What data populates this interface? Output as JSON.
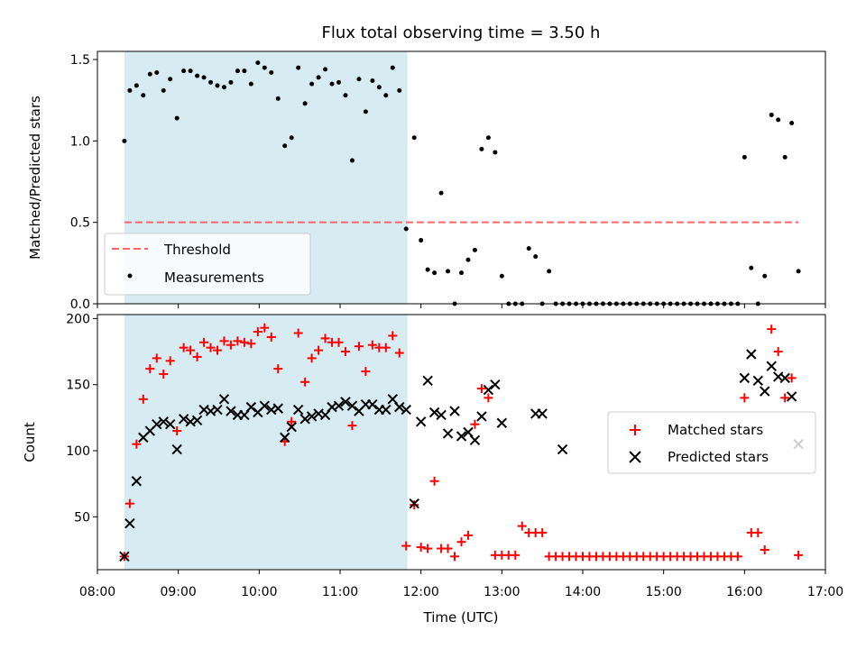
{
  "title": "Flux total observing time = 3.50 h",
  "xlabel": "Time (UTC)",
  "colors": {
    "shade": "#add8e6",
    "threshold": "#ff6666",
    "matched": "#ff0000",
    "predicted": "#000000",
    "measurement": "#000000"
  },
  "chart_data": [
    {
      "type": "scatter",
      "ylabel": "Matched/Predicted stars",
      "xlim": [
        "08:00",
        "17:00"
      ],
      "ylim": [
        0,
        1.55
      ],
      "yticks": [
        "0.0",
        "0.5",
        "1.0",
        "1.5"
      ],
      "ytick_values": [
        0,
        0.5,
        1.0,
        1.5
      ],
      "shaded_region": {
        "from": "08:20",
        "to": "11:50"
      },
      "grid": false,
      "legend_position": "lower left",
      "series": [
        {
          "name": "Threshold",
          "kind": "dashed-line",
          "x": [
            "08:20",
            "16:40"
          ],
          "y": [
            0.5,
            0.5
          ]
        },
        {
          "name": "Measurements",
          "kind": "dots",
          "x": [
            "08:20",
            "08:24",
            "08:29",
            "08:34",
            "08:39",
            "08:44",
            "08:49",
            "08:54",
            "08:59",
            "09:04",
            "09:09",
            "09:14",
            "09:19",
            "09:24",
            "09:29",
            "09:34",
            "09:39",
            "09:44",
            "09:49",
            "09:54",
            "09:59",
            "10:04",
            "10:09",
            "10:14",
            "10:19",
            "10:24",
            "10:29",
            "10:34",
            "10:39",
            "10:44",
            "10:49",
            "10:54",
            "10:59",
            "11:04",
            "11:09",
            "11:14",
            "11:19",
            "11:24",
            "11:29",
            "11:34",
            "11:39",
            "11:44",
            "11:49",
            "11:55",
            "12:00",
            "12:05",
            "12:10",
            "12:15",
            "12:20",
            "12:25",
            "12:30",
            "12:35",
            "12:40",
            "12:45",
            "12:50",
            "12:55",
            "13:00",
            "13:05",
            "13:10",
            "13:15",
            "13:20",
            "13:25",
            "13:30",
            "13:35",
            "13:40",
            "13:45",
            "13:50",
            "13:55",
            "14:00",
            "14:05",
            "14:10",
            "14:15",
            "14:20",
            "14:25",
            "14:30",
            "14:35",
            "14:40",
            "14:45",
            "14:50",
            "14:55",
            "15:00",
            "15:05",
            "15:10",
            "15:15",
            "15:20",
            "15:25",
            "15:30",
            "15:35",
            "15:40",
            "15:45",
            "15:50",
            "15:55",
            "16:00",
            "16:05",
            "16:10",
            "16:15",
            "16:20",
            "16:25",
            "16:30",
            "16:35",
            "16:40"
          ],
          "y": [
            1.0,
            1.31,
            1.34,
            1.28,
            1.41,
            1.42,
            1.31,
            1.38,
            1.14,
            1.43,
            1.43,
            1.4,
            1.39,
            1.36,
            1.34,
            1.33,
            1.36,
            1.43,
            1.43,
            1.35,
            1.48,
            1.45,
            1.42,
            1.26,
            0.97,
            1.02,
            1.45,
            1.23,
            1.35,
            1.39,
            1.44,
            1.35,
            1.36,
            1.28,
            0.88,
            1.38,
            1.18,
            1.37,
            1.33,
            1.28,
            1.45,
            1.31,
            0.46,
            1.02,
            0.39,
            0.21,
            0.19,
            0.68,
            0.2,
            0.0,
            0.19,
            0.27,
            0.33,
            0.95,
            1.02,
            0.93,
            0.17,
            0.0,
            0.0,
            0.0,
            0.34,
            0.29,
            0.0,
            0.2,
            0.0,
            0.0,
            0.0,
            0.0,
            0.0,
            0.0,
            0.0,
            0.0,
            0.0,
            0.0,
            0.0,
            0.0,
            0.0,
            0.0,
            0.0,
            0.0,
            0.0,
            0.0,
            0.0,
            0.0,
            0.0,
            0.0,
            0.0,
            0.0,
            0.0,
            0.0,
            0.0,
            0.0,
            0.9,
            0.22,
            0.0,
            0.17,
            1.16,
            1.13,
            0.9,
            1.11,
            0.2
          ]
        }
      ]
    },
    {
      "type": "scatter",
      "ylabel": "Count",
      "xlim": [
        "08:00",
        "17:00"
      ],
      "ylim": [
        10,
        203
      ],
      "yticks": [
        "50",
        "100",
        "150",
        "200"
      ],
      "ytick_values": [
        50,
        100,
        150,
        200
      ],
      "xticks": [
        "08:00",
        "09:00",
        "10:00",
        "11:00",
        "12:00",
        "13:00",
        "14:00",
        "15:00",
        "16:00",
        "17:00"
      ],
      "shaded_region": {
        "from": "08:20",
        "to": "11:50"
      },
      "grid": false,
      "legend_position": "center right",
      "series": [
        {
          "name": "Matched stars",
          "kind": "plus",
          "x": [
            "08:20",
            "08:24",
            "08:29",
            "08:34",
            "08:39",
            "08:44",
            "08:49",
            "08:54",
            "08:59",
            "09:04",
            "09:09",
            "09:14",
            "09:19",
            "09:24",
            "09:29",
            "09:34",
            "09:39",
            "09:44",
            "09:49",
            "09:54",
            "09:59",
            "10:04",
            "10:09",
            "10:14",
            "10:19",
            "10:24",
            "10:29",
            "10:34",
            "10:39",
            "10:44",
            "10:49",
            "10:54",
            "10:59",
            "11:04",
            "11:09",
            "11:14",
            "11:19",
            "11:24",
            "11:29",
            "11:34",
            "11:39",
            "11:44",
            "11:49",
            "11:55",
            "12:00",
            "12:05",
            "12:10",
            "12:15",
            "12:20",
            "12:25",
            "12:30",
            "12:35",
            "12:40",
            "12:45",
            "12:50",
            "12:55",
            "13:00",
            "13:05",
            "13:10",
            "13:15",
            "13:20",
            "13:25",
            "13:30",
            "13:35",
            "13:40",
            "13:45",
            "13:50",
            "13:55",
            "14:00",
            "14:05",
            "14:10",
            "14:15",
            "14:20",
            "14:25",
            "14:30",
            "14:35",
            "14:40",
            "14:45",
            "14:50",
            "14:55",
            "15:00",
            "15:05",
            "15:10",
            "15:15",
            "15:20",
            "15:25",
            "15:30",
            "15:35",
            "15:40",
            "15:45",
            "15:50",
            "15:55",
            "16:00",
            "16:05",
            "16:10",
            "16:15",
            "16:20",
            "16:25",
            "16:30",
            "16:35",
            "16:40"
          ],
          "y": [
            20,
            60,
            105,
            139,
            162,
            170,
            158,
            168,
            115,
            178,
            176,
            171,
            182,
            178,
            176,
            183,
            180,
            183,
            182,
            181,
            190,
            193,
            186,
            162,
            107,
            122,
            189,
            152,
            170,
            176,
            185,
            182,
            182,
            175,
            119,
            179,
            160,
            180,
            178,
            178,
            187,
            174,
            28,
            59,
            27,
            26,
            77,
            26,
            26,
            20,
            31,
            36,
            120,
            147,
            140,
            21,
            21,
            21,
            21,
            43,
            38,
            38,
            38,
            20,
            20,
            20,
            20,
            20,
            20,
            20,
            20,
            20,
            20,
            20,
            20,
            20,
            20,
            20,
            20,
            20,
            20,
            20,
            20,
            20,
            20,
            20,
            20,
            20,
            20,
            20,
            20,
            20,
            140,
            38,
            38,
            25,
            192,
            175,
            140,
            155,
            21
          ]
        },
        {
          "name": "Predicted stars",
          "kind": "cross",
          "x": [
            "08:20",
            "08:24",
            "08:29",
            "08:34",
            "08:39",
            "08:44",
            "08:49",
            "08:54",
            "08:59",
            "09:04",
            "09:09",
            "09:14",
            "09:19",
            "09:24",
            "09:29",
            "09:34",
            "09:39",
            "09:44",
            "09:49",
            "09:54",
            "09:59",
            "10:04",
            "10:09",
            "10:14",
            "10:19",
            "10:24",
            "10:29",
            "10:34",
            "10:39",
            "10:44",
            "10:49",
            "10:54",
            "10:59",
            "11:04",
            "11:09",
            "11:14",
            "11:19",
            "11:24",
            "11:29",
            "11:34",
            "11:39",
            "11:44",
            "11:49",
            "11:55",
            "12:00",
            "12:05",
            "12:10",
            "12:15",
            "12:20",
            "12:25",
            "12:30",
            "12:35",
            "12:40",
            "12:45",
            "12:50",
            "12:55",
            "13:00",
            "13:25",
            "13:30",
            "13:45",
            "16:00",
            "16:05",
            "16:10",
            "16:15",
            "16:20",
            "16:25",
            "16:30",
            "16:35",
            "16:40"
          ],
          "y": [
            20,
            45,
            77,
            110,
            115,
            120,
            122,
            120,
            101,
            124,
            122,
            123,
            131,
            130,
            131,
            139,
            130,
            127,
            127,
            133,
            129,
            134,
            131,
            132,
            110,
            118,
            131,
            124,
            126,
            128,
            127,
            133,
            134,
            137,
            134,
            130,
            135,
            135,
            131,
            131,
            139,
            133,
            131,
            60,
            122,
            153,
            129,
            127,
            113,
            130,
            111,
            114,
            108,
            126,
            146,
            150,
            121,
            128,
            128,
            101,
            155,
            173,
            153,
            145,
            164,
            156,
            155,
            141,
            105
          ]
        }
      ]
    }
  ]
}
